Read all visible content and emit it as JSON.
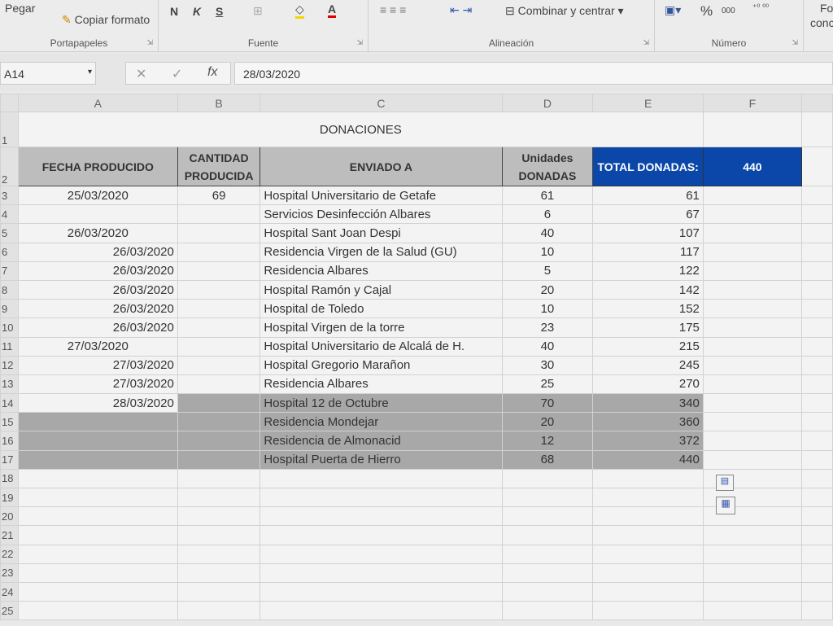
{
  "ribbon": {
    "clipboard": {
      "paste": "Pegar",
      "copy": "Copiar",
      "format_painter": "Copiar formato",
      "label": "Portapapeles"
    },
    "font": {
      "bold": "N",
      "italic": "K",
      "underline": "S",
      "label": "Fuente"
    },
    "alignment": {
      "merge": "Combinar y centrar",
      "label": "Alineación"
    },
    "number": {
      "percent": "%",
      "thousands": "000",
      "label": "Número"
    },
    "styles": {
      "partial_top": "Fo",
      "partial_bottom": "conc"
    }
  },
  "formula_bar": {
    "name_box": "A14",
    "fx": "fx",
    "cancel": "✕",
    "enter": "✓",
    "value": "28/03/2020"
  },
  "columns": [
    "A",
    "B",
    "C",
    "D",
    "E",
    "F"
  ],
  "title": "DONACIONES",
  "headers": [
    "FECHA PRODUCIDO",
    "CANTIDAD PRODUCIDA",
    "ENVIADO A",
    "Unidades DONADAS",
    "TOTAL DONADAS:",
    "440"
  ],
  "rows": [
    [
      "25/03/2020",
      "69",
      "Hospital Universitario de Getafe",
      "61",
      "61"
    ],
    [
      "",
      "",
      "Servicios Desinfección Albares",
      "6",
      "67"
    ],
    [
      "26/03/2020",
      "",
      "Hospital Sant Joan Despi",
      "40",
      "107"
    ],
    [
      "26/03/2020",
      "",
      "Residencia Virgen de la Salud (GU)",
      "10",
      "117"
    ],
    [
      "26/03/2020",
      "",
      "Residencia Albares",
      "5",
      "122"
    ],
    [
      "26/03/2020",
      "",
      "Hospital Ramón y Cajal",
      "20",
      "142"
    ],
    [
      "26/03/2020",
      "",
      "Hospital de Toledo",
      "10",
      "152"
    ],
    [
      "26/03/2020",
      "",
      "Hospital Virgen de la torre",
      "23",
      "175"
    ],
    [
      "27/03/2020",
      "",
      "Hospital Universitario de Alcalá de H.",
      "40",
      "215"
    ],
    [
      "27/03/2020",
      "",
      "Hospital Gregorio Marañon",
      "30",
      "245"
    ],
    [
      "27/03/2020",
      "",
      "Residencia Albares",
      "25",
      "270"
    ],
    [
      "28/03/2020",
      "",
      "Hospital 12 de Octubre",
      "70",
      "340"
    ],
    [
      "",
      "",
      "Residencia Mondejar",
      "20",
      "360"
    ],
    [
      "",
      "",
      "Residencia de Almonacid",
      "12",
      "372"
    ],
    [
      "",
      "",
      "Hospital Puerta de Hierro",
      "68",
      "440"
    ]
  ],
  "date_align": [
    "c",
    "r",
    "c",
    "r",
    "r",
    "r",
    "r",
    "r",
    "c",
    "r",
    "r",
    "r"
  ],
  "empty_rows": [
    "18",
    "19",
    "20",
    "21",
    "22",
    "23",
    "24",
    "25"
  ]
}
